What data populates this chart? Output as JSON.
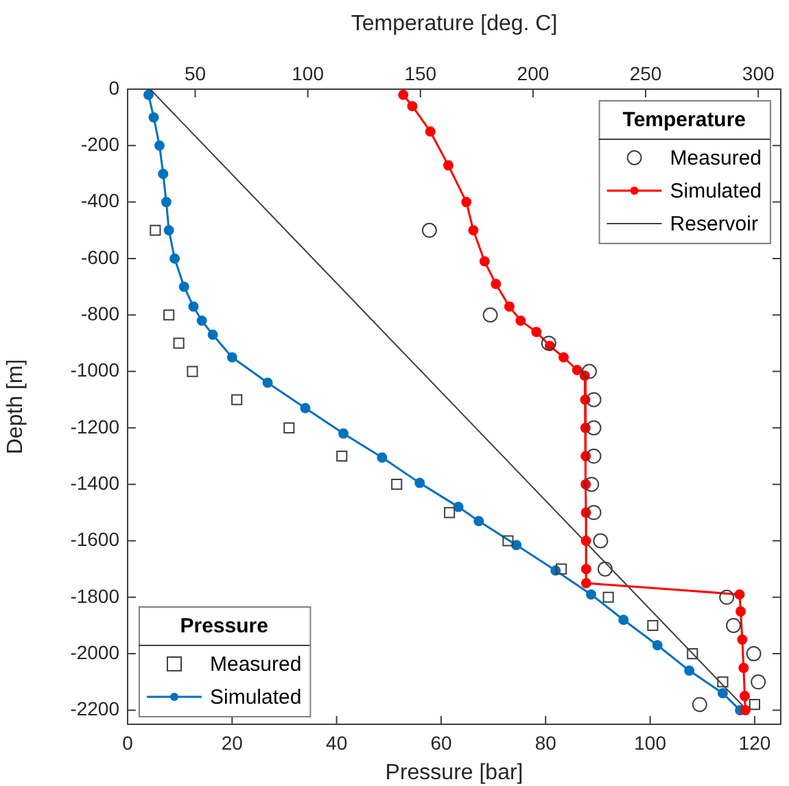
{
  "chart_data": {
    "type": "line",
    "xlabel": "Pressure [bar]",
    "x2label": "Temperature [deg. C]",
    "ylabel": "Depth [m]",
    "xlim": [
      0,
      125
    ],
    "xticks": [
      0,
      20,
      40,
      60,
      80,
      100,
      120
    ],
    "x2lim": [
      20,
      310
    ],
    "x2ticks": [
      50,
      100,
      150,
      200,
      250,
      300
    ],
    "ylim": [
      -2250,
      0
    ],
    "yticks": [
      0,
      -200,
      -400,
      -600,
      -800,
      -1000,
      -1200,
      -1400,
      -1600,
      -1800,
      -2000,
      -2200
    ],
    "grid": false,
    "legend": "bottom left",
    "legend_title": "Pressure",
    "annotations": [
      "Temperature"
    ],
    "series": [
      {
        "name": "Measured",
        "type": "scatter",
        "axis": "x2",
        "marker": "circle",
        "color": "#404040",
        "x": [
          154,
          181,
          207,
          225,
          227,
          227,
          227,
          226,
          227,
          230,
          232,
          286,
          289,
          298,
          300,
          274
        ],
        "values": [
          -500,
          -800,
          -900,
          -1000,
          -1100,
          -1200,
          -1300,
          -1400,
          -1500,
          -1600,
          -1700,
          -1800,
          -1900,
          -2000,
          -2100,
          -2180
        ]
      },
      {
        "name": "Simulated",
        "axis": "x2",
        "marker": "circle",
        "color": "#ff0000",
        "x": [
          142.4,
          146.4,
          154.4,
          162.4,
          170.4,
          173.5,
          178.5,
          183.5,
          189.5,
          194.5,
          201.5,
          207.5,
          213.6,
          219.6,
          223.0,
          223.2,
          223.3,
          223.4,
          223.4,
          223.5,
          223.5,
          223.6,
          223.6,
          291.7,
          292.2,
          292.9,
          293.5,
          294.0,
          294.3
        ],
        "values": [
          -20,
          -60,
          -150,
          -270,
          -400,
          -500,
          -610,
          -690,
          -770,
          -820,
          -860,
          -910,
          -950,
          -995,
          -1015,
          -1100,
          -1200,
          -1300,
          -1400,
          -1500,
          -1600,
          -1700,
          -1750,
          -1790,
          -1850,
          -1950,
          -2050,
          -2150,
          -2200
        ]
      },
      {
        "name": "Reservoir",
        "axis": "x2",
        "marker": "none",
        "color": "#404040",
        "x": [
          30,
          295
        ],
        "values": [
          0,
          -2200
        ]
      },
      {
        "name": "Measured",
        "type": "scatter",
        "marker": "square",
        "color": "#404040",
        "x": [
          5.3,
          7.9,
          9.8,
          12.4,
          20.9,
          30.9,
          41,
          51.5,
          61.6,
          72.8,
          83,
          92,
          100.5,
          108.1,
          113.9,
          120
        ],
        "values": [
          -500,
          -800,
          -900,
          -1000,
          -1100,
          -1200,
          -1300,
          -1400,
          -1500,
          -1600,
          -1700,
          -1800,
          -1900,
          -2000,
          -2100,
          -2180
        ]
      },
      {
        "name": "Simulated",
        "marker": "circle",
        "color": "#0072bd",
        "x": [
          4.0,
          5.0,
          6.1,
          6.8,
          7.4,
          7.9,
          9.0,
          10.8,
          12.6,
          14.2,
          16.3,
          20.0,
          26.8,
          34.0,
          41.3,
          48.7,
          55.9,
          63.3,
          67.2,
          74.4,
          81.9,
          88.7,
          94.9,
          101.4,
          107.5,
          113.9,
          117.2
        ],
        "values": [
          -20,
          -100,
          -200,
          -300,
          -400,
          -500,
          -600,
          -700,
          -770,
          -820,
          -870,
          -950,
          -1040,
          -1130,
          -1220,
          -1305,
          -1395,
          -1480,
          -1530,
          -1615,
          -1705,
          -1790,
          -1880,
          -1970,
          -2060,
          -2140,
          -2200
        ]
      }
    ]
  }
}
